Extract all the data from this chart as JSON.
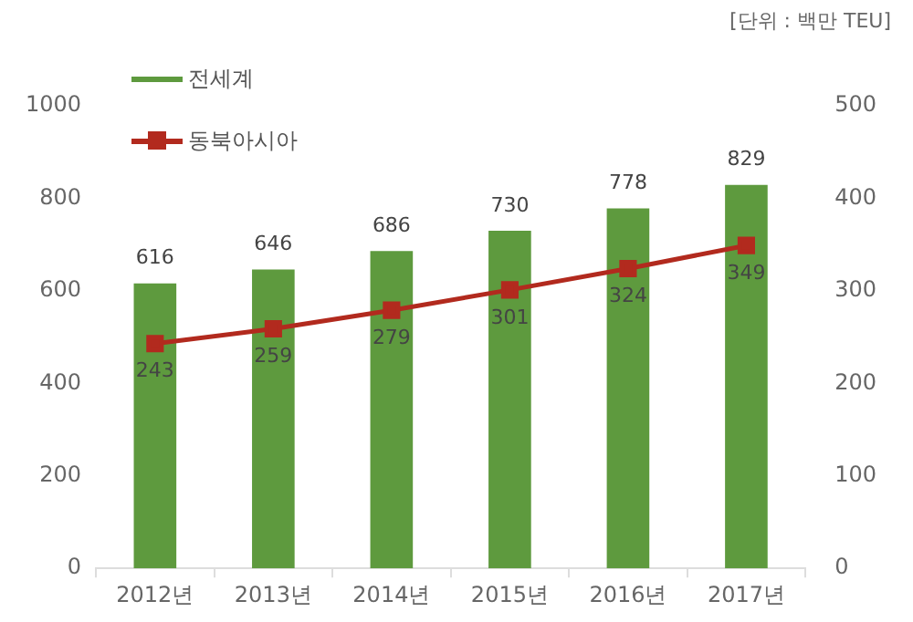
{
  "chart_data": {
    "type": "bar",
    "categories": [
      "2012년",
      "2013년",
      "2014년",
      "2015년",
      "2016년",
      "2017년"
    ],
    "series": [
      {
        "name": "전세계",
        "color": "#5e9a3e",
        "values": [
          616,
          646,
          686,
          730,
          778,
          829
        ]
      },
      {
        "name": "동북아시아",
        "type": "line",
        "axis": "y2",
        "color": "#b22a1e",
        "values": [
          243,
          259,
          279,
          301,
          324,
          349
        ]
      }
    ],
    "ylim": [
      0,
      1000
    ],
    "yticks": [
      0,
      200,
      400,
      600,
      800,
      1000
    ],
    "y2lim": [
      0,
      500
    ],
    "y2ticks": [
      0,
      100,
      200,
      300,
      400,
      500
    ],
    "grid": false,
    "legend": "top left",
    "marker": "square",
    "data_labels": true,
    "annotations": [
      "[단위 : 백만 TEU]"
    ]
  }
}
